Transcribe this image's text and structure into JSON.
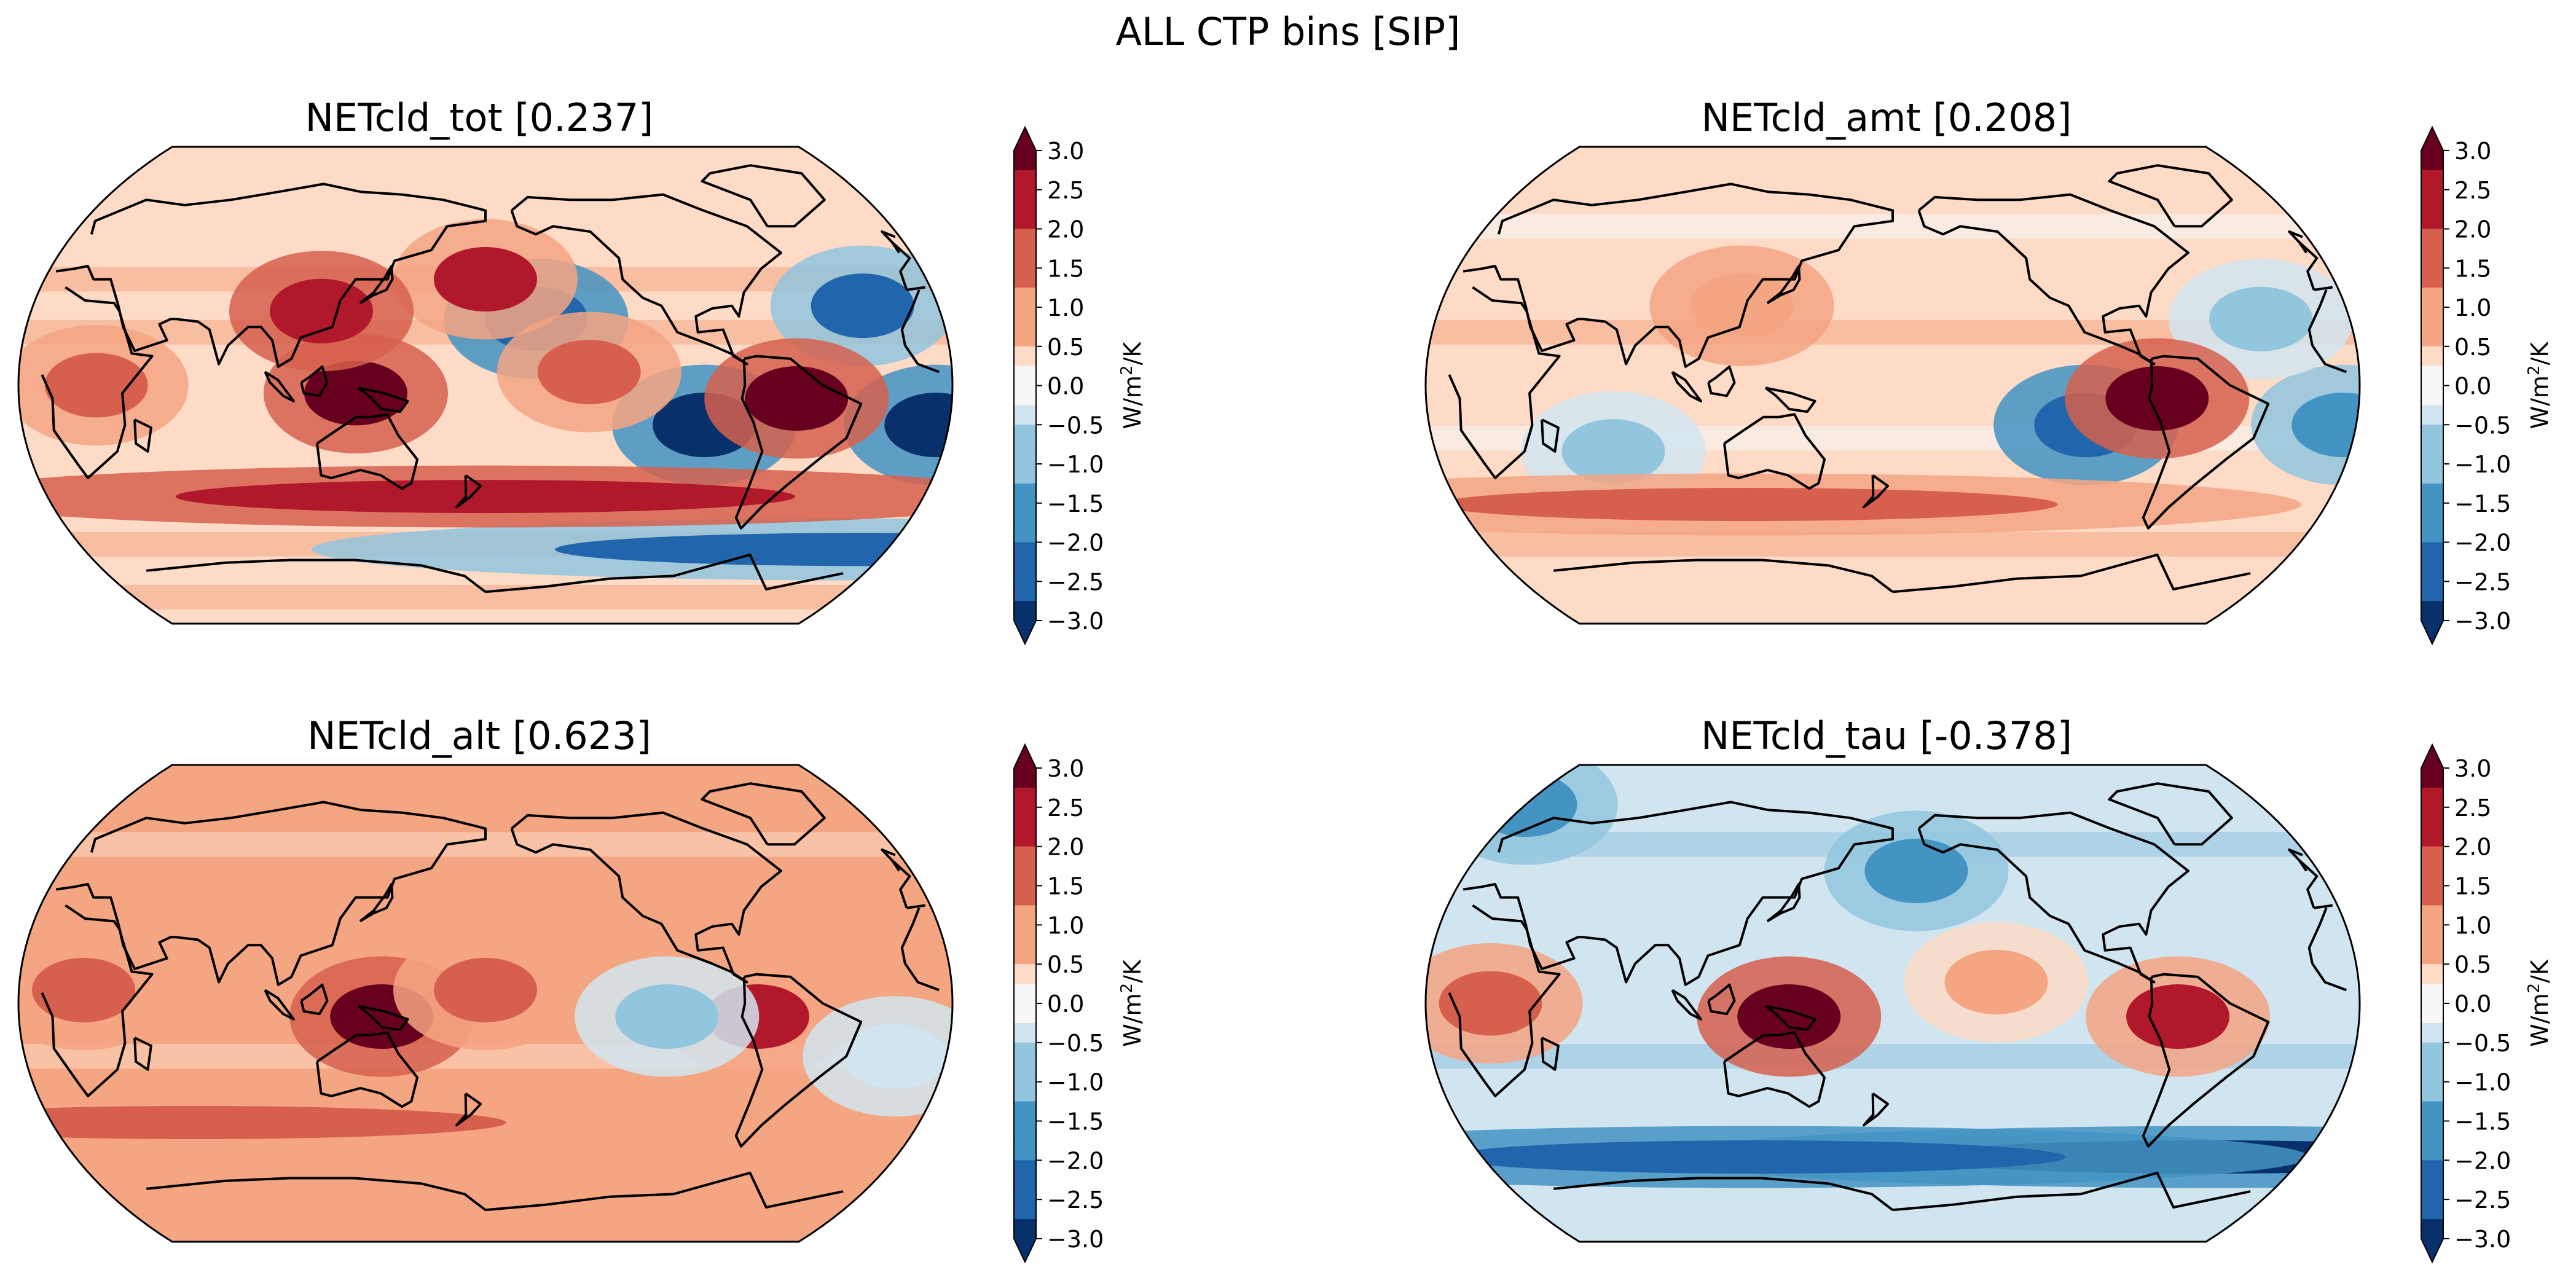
{
  "figure": {
    "title": "ALL CTP bins [SIP]"
  },
  "colorbar": {
    "label": "W/m²/K",
    "label_parts": [
      "W/m",
      "2",
      "/K"
    ],
    "ticks": [
      "3.0",
      "2.5",
      "2.0",
      "1.5",
      "1.0",
      "0.5",
      "0.0",
      "−0.5",
      "−1.0",
      "−1.5",
      "−2.0",
      "−2.5",
      "−3.0"
    ],
    "levels": [
      -3.0,
      3.0
    ],
    "extend": "both",
    "colormap": "RdBu_r"
  },
  "colors": {
    "dark_blue": "#08306b",
    "blue": "#2166ac",
    "mid_blue": "#4393c3",
    "light_blue": "#92c5de",
    "pale_blue": "#d1e5f0",
    "neutral": "#f7f7f7",
    "pale_red": "#fddbc7",
    "light_red": "#f4a582",
    "mid_red": "#d6604d",
    "red": "#b2182b",
    "dark_red": "#67001f"
  },
  "panels": [
    {
      "id": "tot",
      "title": "NETcld_tot [0.237]",
      "variable": "NETcld_tot",
      "global_mean": 0.237,
      "base_value": 0.6,
      "features": [
        {
          "region": "Southern Ocean band",
          "lon": -10,
          "lat": -62,
          "value": -2.2
        },
        {
          "region": "SE Pacific stratocumulus",
          "lon": -95,
          "lat": -15,
          "value": -3.0
        },
        {
          "region": "SE Atlantic",
          "lon": -5,
          "lat": -15,
          "value": -2.8
        },
        {
          "region": "North Pacific subtropics",
          "lon": -160,
          "lat": 25,
          "value": -2.5
        },
        {
          "region": "North Atlantic",
          "lon": -30,
          "lat": 30,
          "value": -2.2
        },
        {
          "region": "Equatorial Pacific",
          "lon": -140,
          "lat": 5,
          "value": 1.8
        },
        {
          "region": "South America",
          "lon": -60,
          "lat": -5,
          "value": 2.8
        },
        {
          "region": "Maritime continent",
          "lon": 130,
          "lat": -3,
          "value": 3.0
        },
        {
          "region": "Southern midlatitude band",
          "lon": 180,
          "lat": -42,
          "value": 2.6
        },
        {
          "region": "North Pacific midlatitudes",
          "lon": 180,
          "lat": 40,
          "value": 2.2
        },
        {
          "region": "East Asia",
          "lon": 115,
          "lat": 28,
          "value": 2.5
        },
        {
          "region": "Africa",
          "lon": 30,
          "lat": 0,
          "value": 2.0
        }
      ]
    },
    {
      "id": "amt",
      "title": "NETcld_amt [0.208]",
      "variable": "NETcld_amt",
      "global_mean": 0.208,
      "base_value": 0.4,
      "features": [
        {
          "region": "SE Pacific",
          "lon": -105,
          "lat": -15,
          "value": -2.4
        },
        {
          "region": "SE Atlantic",
          "lon": -5,
          "lat": -15,
          "value": -1.8
        },
        {
          "region": "North Atlantic",
          "lon": -35,
          "lat": 25,
          "value": -1.0
        },
        {
          "region": "Indian Ocean south",
          "lon": 70,
          "lat": -25,
          "value": -0.8
        },
        {
          "region": "Peru coast",
          "lon": -78,
          "lat": -5,
          "value": 2.8
        },
        {
          "region": "Southern midlatitude band",
          "lon": 120,
          "lat": -45,
          "value": 1.3
        },
        {
          "region": "East Asia",
          "lon": 120,
          "lat": 30,
          "value": 1.2
        }
      ]
    },
    {
      "id": "alt",
      "title": "NETcld_alt [0.623]",
      "variable": "NETcld_alt",
      "global_mean": 0.623,
      "base_value": 0.8,
      "features": [
        {
          "region": "New Guinea",
          "lon": 140,
          "lat": -5,
          "value": 3.0
        },
        {
          "region": "Peru coast",
          "lon": -75,
          "lat": -5,
          "value": 2.2
        },
        {
          "region": "Equatorial Pacific",
          "lon": 180,
          "lat": 5,
          "value": 1.6
        },
        {
          "region": "Equatorial east Pacific",
          "lon": -110,
          "lat": -5,
          "value": -0.8
        },
        {
          "region": "South Atlantic",
          "lon": -20,
          "lat": -20,
          "value": -0.5
        },
        {
          "region": "Southern midlatitude band",
          "lon": 60,
          "lat": -45,
          "value": 1.4
        },
        {
          "region": "Africa",
          "lon": 25,
          "lat": 5,
          "value": 1.6
        }
      ]
    },
    {
      "id": "tau",
      "title": "NETcld_tau [-0.378]",
      "variable": "NETcld_tau",
      "global_mean": -0.378,
      "base_value": -0.5,
      "features": [
        {
          "region": "Southern Ocean band",
          "lon": -40,
          "lat": -58,
          "value": -2.9
        },
        {
          "region": "Southern Ocean band west",
          "lon": 120,
          "lat": -58,
          "value": -2.6
        },
        {
          "region": "Arctic",
          "lon": 0,
          "lat": 75,
          "value": -1.8
        },
        {
          "region": "North Pacific",
          "lon": -170,
          "lat": 50,
          "value": -1.6
        },
        {
          "region": "New Guinea",
          "lon": 140,
          "lat": -5,
          "value": 2.8
        },
        {
          "region": "South America",
          "lon": -70,
          "lat": -5,
          "value": 2.2
        },
        {
          "region": "Africa",
          "lon": 25,
          "lat": 0,
          "value": 1.5
        },
        {
          "region": "Tropical Pacific",
          "lon": -140,
          "lat": 8,
          "value": 0.8
        }
      ]
    }
  ]
}
